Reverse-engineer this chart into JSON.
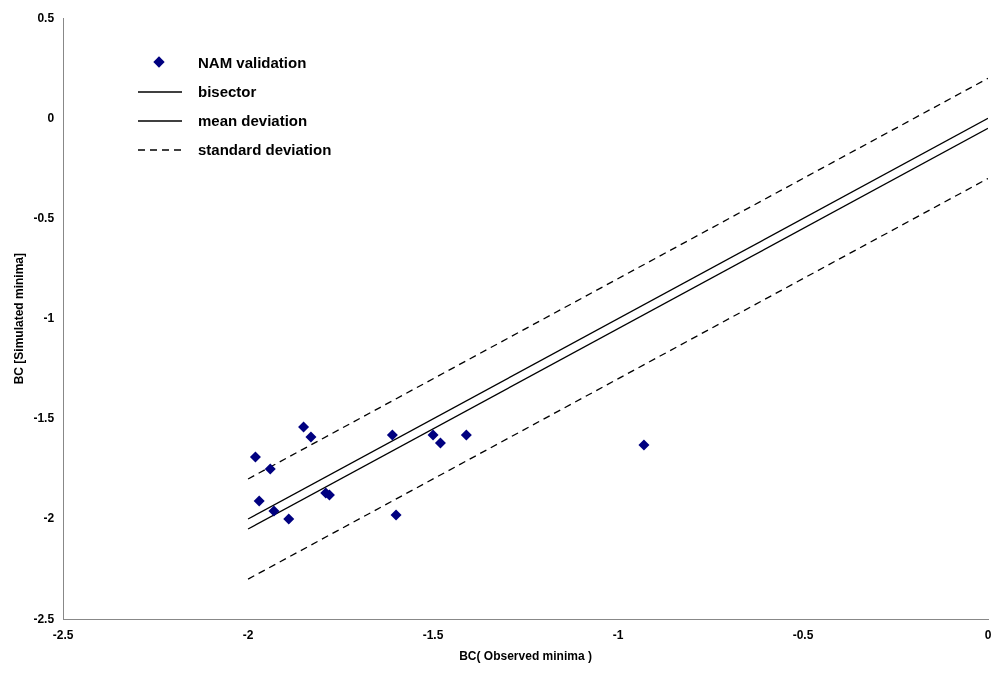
{
  "chart_data": {
    "type": "scatter",
    "xlabel": "BC( Observed minima )",
    "ylabel": "BC [Simulated minima]",
    "xlim": [
      -2.5,
      0
    ],
    "ylim": [
      -2.5,
      0.5
    ],
    "xticks": [
      -2.5,
      -2,
      -1.5,
      -1,
      -0.5,
      0
    ],
    "yticks": [
      -2.5,
      -2,
      -1.5,
      -1,
      -0.5,
      0,
      0.5
    ],
    "grid": false,
    "legend": "top left",
    "series": [
      {
        "name": "NAM validation",
        "type": "scatter",
        "color": "#000080",
        "marker": "diamond",
        "x": [
          -1.98,
          -1.97,
          -1.94,
          -1.93,
          -1.89,
          -1.85,
          -1.83,
          -1.79,
          -1.78,
          -1.61,
          -1.6,
          -1.5,
          -1.48,
          -1.41,
          -0.93
        ],
        "values": [
          -1.69,
          -1.91,
          -1.75,
          -1.96,
          -2.0,
          -1.54,
          -1.59,
          -1.87,
          -1.88,
          -1.58,
          -1.98,
          -1.58,
          -1.62,
          -1.58,
          -1.63
        ]
      },
      {
        "name": "bisector",
        "type": "line",
        "color": "#000000",
        "line_style": "solid",
        "marker": "none",
        "x": [
          -2,
          0
        ],
        "values": [
          -2,
          0
        ]
      },
      {
        "name": "mean deviation",
        "type": "line",
        "color": "#000000",
        "line_style": "solid",
        "marker": "none",
        "x": [
          -2,
          0
        ],
        "values": [
          -2.05,
          -0.05
        ]
      },
      {
        "name": "standard deviation",
        "type": "line",
        "color": "#000000",
        "line_style": "dashed",
        "marker": "none",
        "x": [
          -2,
          0
        ],
        "values": [
          -1.8,
          0.2
        ]
      },
      {
        "type": "line",
        "color": "#000000",
        "line_style": "dashed",
        "marker": "none",
        "x": [
          -2,
          0
        ],
        "values": [
          -2.3,
          -0.3
        ]
      }
    ]
  }
}
